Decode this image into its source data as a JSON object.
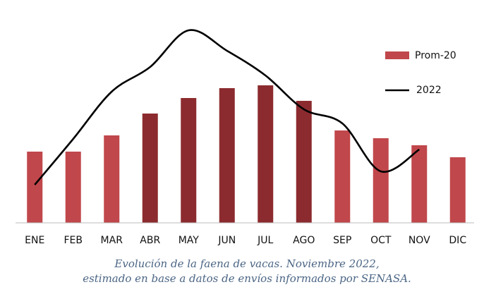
{
  "chart_data": {
    "type": "bar-line",
    "categories": [
      "ENE",
      "FEB",
      "MAR",
      "ABR",
      "MAY",
      "JUN",
      "JUL",
      "AGO",
      "SEP",
      "OCT",
      "NOV",
      "DIC"
    ],
    "series": [
      {
        "name": "Prom-20",
        "type": "bar",
        "values": [
          101,
          101,
          124,
          155,
          177,
          191,
          195,
          173,
          131,
          120,
          110,
          93
        ],
        "colors": [
          "#c0474b",
          "#c0474b",
          "#c0474b",
          "#8c2b2f",
          "#8c2b2f",
          "#8c2b2f",
          "#8c2b2f",
          "#8c2b2f",
          "#c0474b",
          "#c0474b",
          "#c0474b",
          "#c0474b"
        ],
        "color": "#c0474b"
      },
      {
        "name": "2022",
        "type": "line",
        "color": "#000000",
        "values": [
          54,
          119,
          186,
          221,
          273,
          244,
          209,
          161,
          141,
          73,
          104,
          null
        ]
      }
    ],
    "caption": [
      "Evolución de la faena de vacas. Noviembre 2022,",
      "estimado en base a datos de envíos informados por SENASA."
    ]
  }
}
